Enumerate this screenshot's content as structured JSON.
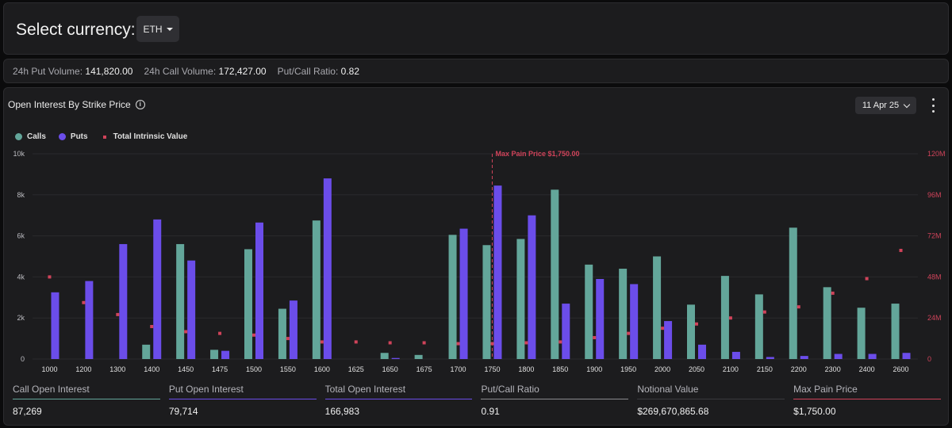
{
  "header": {
    "title": "Select currency:",
    "currency": "ETH"
  },
  "stats": {
    "put_volume_label": "24h Put Volume:",
    "put_volume": "141,820.00",
    "call_volume_label": "24h Call Volume:",
    "call_volume": "172,427.00",
    "ratio_label": "Put/Call Ratio:",
    "ratio": "0.82"
  },
  "chart_panel": {
    "title": "Open Interest By Strike Price",
    "date": "11 Apr 25",
    "legend": {
      "calls": "Calls",
      "puts": "Puts",
      "intrinsic": "Total Intrinsic Value"
    }
  },
  "colors": {
    "calls": "#63a69a",
    "puts": "#6b4dea",
    "intrinsic": "#d0435a",
    "max_pain": "#d0435a"
  },
  "chart_data": {
    "type": "bar",
    "title": "Open Interest By Strike Price",
    "categories": [
      "1000",
      "1200",
      "1300",
      "1400",
      "1450",
      "1475",
      "1500",
      "1550",
      "1600",
      "1625",
      "1650",
      "1675",
      "1700",
      "1750",
      "1800",
      "1850",
      "1900",
      "1950",
      "2000",
      "2050",
      "2100",
      "2150",
      "2200",
      "2300",
      "2400",
      "2600"
    ],
    "series": [
      {
        "name": "Calls",
        "axis": "left",
        "values": [
          0,
          0,
          0,
          700,
          5600,
          450,
          5350,
          2450,
          6750,
          0,
          300,
          200,
          6050,
          5550,
          5850,
          8250,
          4600,
          4400,
          5000,
          2650,
          4050,
          3150,
          6400,
          3500,
          2500,
          2700
        ]
      },
      {
        "name": "Puts",
        "axis": "left",
        "values": [
          3250,
          3800,
          5600,
          6800,
          4800,
          400,
          6650,
          2850,
          8800,
          0,
          50,
          0,
          6350,
          8450,
          7000,
          2700,
          3900,
          3650,
          1850,
          700,
          350,
          100,
          150,
          250,
          250,
          300
        ]
      },
      {
        "name": "Total Intrinsic Value",
        "axis": "right",
        "type": "scatter",
        "values": [
          48000000,
          33000000,
          26000000,
          19000000,
          16000000,
          15000000,
          14000000,
          12000000,
          10000000,
          10000000,
          9500000,
          9500000,
          9000000,
          9000000,
          9500000,
          10000000,
          12500000,
          15000000,
          18000000,
          20500000,
          24000000,
          27500000,
          30500000,
          38500000,
          47000000,
          63500000
        ]
      }
    ],
    "y_left": {
      "min": 0,
      "max": 10000,
      "ticks": [
        0,
        2000,
        4000,
        6000,
        8000,
        10000
      ],
      "tick_labels": [
        "0",
        "2k",
        "4k",
        "6k",
        "8k",
        "10k"
      ]
    },
    "y_right": {
      "min": 0,
      "max": 120000000,
      "ticks": [
        0,
        24000000,
        48000000,
        72000000,
        96000000,
        120000000
      ],
      "tick_labels": [
        "0",
        "24M",
        "48M",
        "72M",
        "96M",
        "120M"
      ]
    },
    "max_pain": {
      "category": "1750",
      "label": "Max Pain Price $1,750.00"
    },
    "grid": true,
    "legend_position": "top-left"
  },
  "metrics": [
    {
      "label": "Call Open Interest",
      "value": "87,269",
      "color": "#63a69a"
    },
    {
      "label": "Put Open Interest",
      "value": "79,714",
      "color": "#6b4dea"
    },
    {
      "label": "Total Open Interest",
      "value": "166,983",
      "color": "#6b4dea"
    },
    {
      "label": "Put/Call Ratio",
      "value": "0.91",
      "color": "#8a8a8f"
    },
    {
      "label": "Notional Value",
      "value": "$269,670,865.68",
      "color": "#3a3a3e"
    },
    {
      "label": "Max Pain Price",
      "value": "$1,750.00",
      "color": "#d0435a"
    }
  ]
}
